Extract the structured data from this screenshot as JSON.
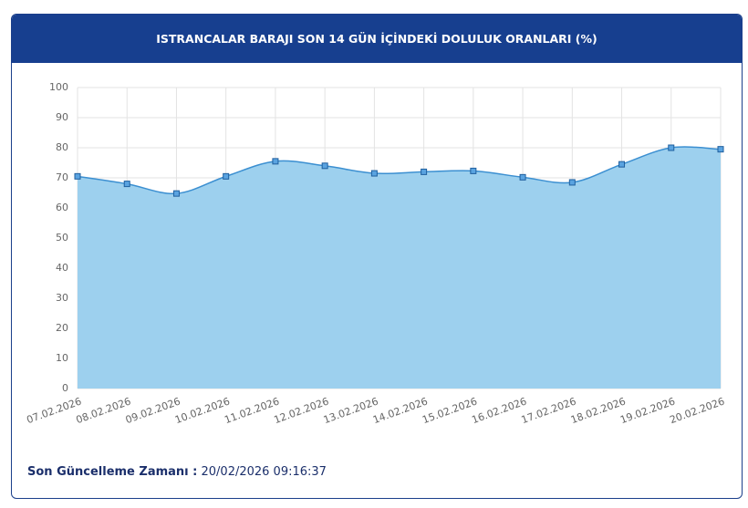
{
  "chart_data": {
    "type": "area",
    "title": "ISTRANCALAR BARAJI SON 14 GÜN İÇİNDEKİ DOLULUK ORANLARI (%)",
    "categories": [
      "07.02.2026",
      "08.02.2026",
      "09.02.2026",
      "10.02.2026",
      "11.02.2026",
      "12.02.2026",
      "13.02.2026",
      "14.02.2026",
      "15.02.2026",
      "16.02.2026",
      "17.02.2026",
      "18.02.2026",
      "19.02.2026",
      "20.02.2026"
    ],
    "values": [
      70.5,
      68,
      64.8,
      70.5,
      75.5,
      74,
      71.5,
      72,
      72.3,
      70.2,
      68.5,
      74.5,
      80,
      79.5
    ],
    "color": "#3b8fd1",
    "ylim": [
      0,
      100
    ],
    "yticks": [
      0,
      10,
      20,
      30,
      40,
      50,
      60,
      70,
      80,
      90,
      100
    ],
    "grid": true
  },
  "footer": {
    "label": "Son Güncelleme Zamanı :",
    "value": "20/02/2026 09:16:37"
  }
}
